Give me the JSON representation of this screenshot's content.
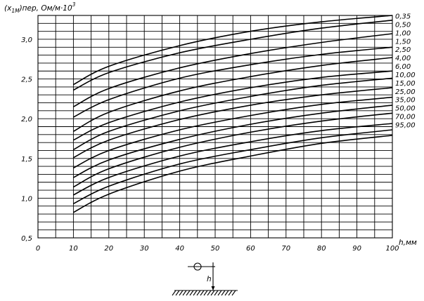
{
  "chart_data": {
    "type": "line",
    "title": "",
    "ylabel": {
      "pre": "(x",
      "sub": "1М",
      "post": ")пер, Ом/м·10",
      "sup": "3"
    },
    "xlabel": "h,мм",
    "xlim": [
      0,
      100
    ],
    "ylim": [
      0.5,
      3.3
    ],
    "x_ticks": [
      "0",
      "10",
      "20",
      "30",
      "40",
      "50",
      "60",
      "70",
      "80",
      "90",
      "100"
    ],
    "y_ticks": [
      "0,5",
      "1,0",
      "1,5",
      "2,0",
      "2,5",
      "3,0"
    ],
    "x_tick_values": [
      0,
      10,
      20,
      30,
      40,
      50,
      60,
      70,
      80,
      90,
      100
    ],
    "y_tick_values": [
      0.5,
      1.0,
      1.5,
      2.0,
      2.5,
      3.0
    ],
    "grid": true,
    "x": [
      10,
      20,
      40,
      60,
      80,
      100
    ],
    "series": [
      {
        "name": "0,35",
        "values": [
          2.43,
          2.66,
          2.92,
          3.1,
          3.22,
          3.3
        ]
      },
      {
        "name": "0,50",
        "values": [
          2.36,
          2.58,
          2.83,
          3.0,
          3.14,
          3.24
        ]
      },
      {
        "name": "1,00",
        "values": [
          2.15,
          2.38,
          2.64,
          2.82,
          2.96,
          3.07
        ]
      },
      {
        "name": "1,50",
        "values": [
          2.02,
          2.24,
          2.51,
          2.68,
          2.81,
          2.9
        ]
      },
      {
        "name": "2,50",
        "values": [
          1.84,
          2.08,
          2.35,
          2.53,
          2.67,
          2.77
        ]
      },
      {
        "name": "4,00",
        "values": [
          1.73,
          1.95,
          2.21,
          2.39,
          2.52,
          2.6
        ]
      },
      {
        "name": "6,00",
        "values": [
          1.61,
          1.84,
          2.1,
          2.28,
          2.42,
          2.51
        ]
      },
      {
        "name": "10,00",
        "values": [
          1.51,
          1.73,
          1.99,
          2.17,
          2.3,
          2.39
        ]
      },
      {
        "name": "15,00",
        "values": [
          1.38,
          1.6,
          1.86,
          2.04,
          2.18,
          2.27
        ]
      },
      {
        "name": "25,00",
        "values": [
          1.26,
          1.48,
          1.74,
          1.93,
          2.07,
          2.17
        ]
      },
      {
        "name": "35,00",
        "values": [
          1.14,
          1.37,
          1.64,
          1.83,
          1.97,
          2.07
        ]
      },
      {
        "name": "50,00",
        "values": [
          1.04,
          1.26,
          1.53,
          1.71,
          1.85,
          1.94
        ]
      },
      {
        "name": "70,00",
        "values": [
          0.93,
          1.15,
          1.43,
          1.61,
          1.76,
          1.86
        ]
      },
      {
        "name": "95,00",
        "values": [
          0.82,
          1.05,
          1.34,
          1.53,
          1.69,
          1.79
        ]
      }
    ],
    "schematic_label": "h"
  }
}
